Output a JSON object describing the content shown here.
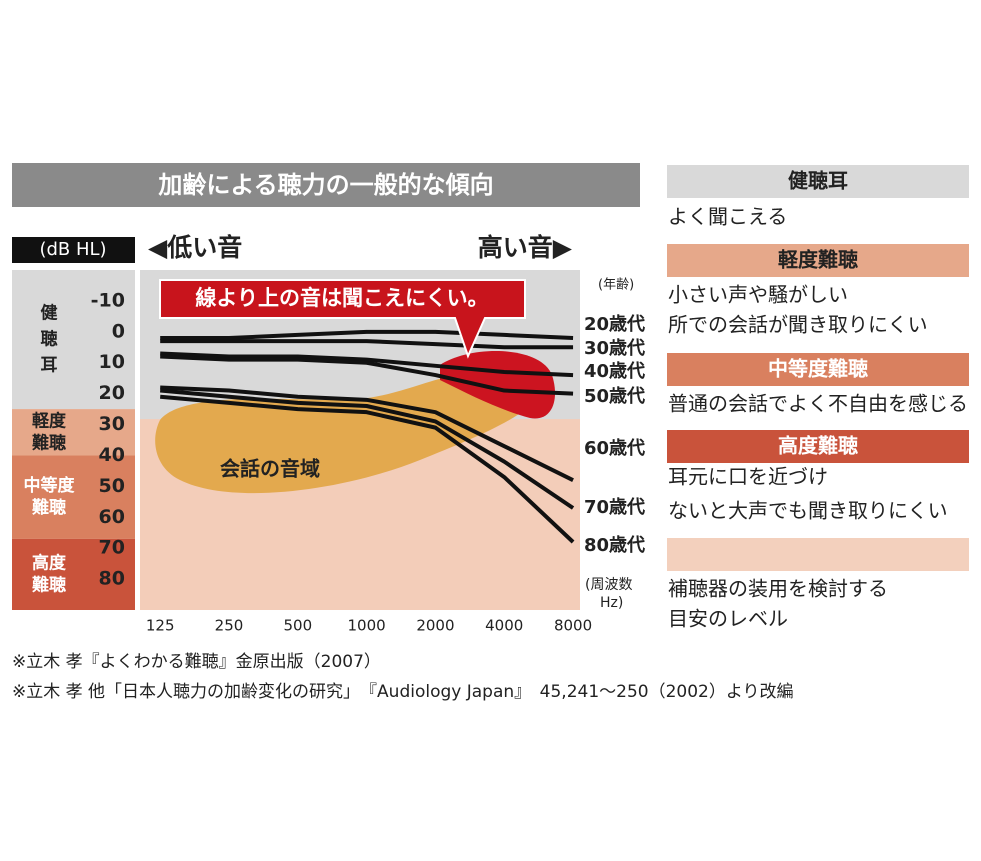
{
  "chart_data": {
    "type": "line",
    "title": "加齢による聴力の一般的な傾向",
    "ylabel": "(dB HL)",
    "low_label": "◀低い音",
    "high_label": "高い音▶",
    "age_label": "(年齢)",
    "xlabel": [
      "(周波数",
      "Hz)"
    ],
    "annotation": "線より上の音は聞こえにくい。",
    "speech_label": "会話の音域",
    "x": [
      125,
      250,
      500,
      1000,
      2000,
      4000,
      8000
    ],
    "xlim": [
      102,
      8580
    ],
    "xticks": [
      125,
      250,
      500,
      1000,
      2000,
      4000,
      8000
    ],
    "xlog": true,
    "ylim": [
      -20,
      90
    ],
    "yticks": [
      -10,
      0,
      10,
      20,
      30,
      40,
      50,
      60,
      70,
      80
    ],
    "yinverted": true,
    "grid": false,
    "series": [
      {
        "name": "20歳代",
        "color": "#111111",
        "values": [
          2,
          2,
          1,
          0,
          0,
          1,
          2
        ]
      },
      {
        "name": "30歳代",
        "color": "#111111",
        "values": [
          3,
          3,
          3,
          3,
          4,
          5,
          5
        ]
      },
      {
        "name": "40歳代",
        "color": "#111111",
        "values": [
          7,
          8,
          8,
          9,
          11,
          13,
          14
        ]
      },
      {
        "name": "50歳代",
        "color": "#111111",
        "values": [
          8,
          9,
          9,
          10,
          14,
          19,
          20
        ]
      },
      {
        "name": "60歳代",
        "color": "#111111",
        "values": [
          18,
          19,
          21,
          22,
          26,
          37,
          48
        ]
      },
      {
        "name": "70歳代",
        "color": "#111111",
        "values": [
          19,
          21,
          23,
          24,
          29,
          42,
          57
        ]
      },
      {
        "name": "80歳代",
        "color": "#111111",
        "values": [
          21,
          23,
          25,
          26,
          31,
          47,
          68
        ]
      }
    ],
    "bands": [
      {
        "lines": [
          "健",
          "聴",
          "耳"
        ],
        "range": [
          -20,
          25
        ],
        "color": "#d9d9d9",
        "text_color": "#222222"
      },
      {
        "lines": [
          "軽度",
          "難聴"
        ],
        "range": [
          25,
          40
        ],
        "color": "#e6a88a",
        "text_color": "#222222"
      },
      {
        "lines": [
          "中等度",
          "難聴"
        ],
        "range": [
          40,
          67
        ],
        "color": "#d9805f",
        "text_color": "#ffffff"
      },
      {
        "lines": [
          "高度",
          "難聴"
        ],
        "range": [
          67,
          90
        ],
        "color": "#c9533b",
        "text_color": "#ffffff"
      }
    ],
    "legend_panel": [
      {
        "title": "健聴耳",
        "color": "#d9d9d9",
        "title_color": "#222222",
        "lines": [
          "よく聞こえる"
        ]
      },
      {
        "title": "軽度難聴",
        "color": "#e6a88a",
        "title_color": "#222222",
        "lines": [
          "小さい声や騒がしい",
          "所での会話が聞き取りにくい"
        ]
      },
      {
        "title": "中等度難聴",
        "color": "#d9805f",
        "title_color": "#ffffff",
        "lines": [
          "普通の会話でよく不自由を感じる"
        ]
      },
      {
        "title": "高度難聴",
        "color": "#c9533b",
        "title_color": "#ffffff",
        "lines": [
          "耳元に口を近づけ",
          "ないと大声でも聞き取りにくい"
        ]
      },
      {
        "color": "#f3d0bd",
        "lines": [
          "補聴器の装用を検討する",
          "目安のレベル"
        ]
      }
    ],
    "footnotes": [
      "※立木 孝『よくわかる難聴』金原出版（2007）",
      "※立木 孝 他「日本人聴力の加齢変化の研究」　『Audiology Japan』　45,241〜250（2002）より改編"
    ]
  }
}
